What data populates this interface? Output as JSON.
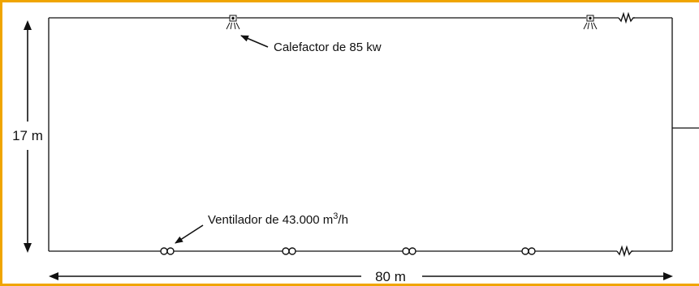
{
  "colors": {
    "frame": "#f0a500",
    "line": "#111111",
    "background": "#ffffff"
  },
  "dimensions": {
    "height_label": "17 m",
    "width_label": "80 m"
  },
  "annotations": {
    "heater": {
      "text": "Calefactor de 85 kw"
    },
    "fan": {
      "prefix": "Ventilador de 43.000 m",
      "superscript": "3",
      "suffix": "/h"
    }
  },
  "icons": {
    "heater": "heater-icon",
    "fan": "fan-icon",
    "resistor": "resistor-icon",
    "arrow": "arrow-icon"
  },
  "counts": {
    "heaters": 2,
    "fans": 4,
    "resistors": 2
  }
}
